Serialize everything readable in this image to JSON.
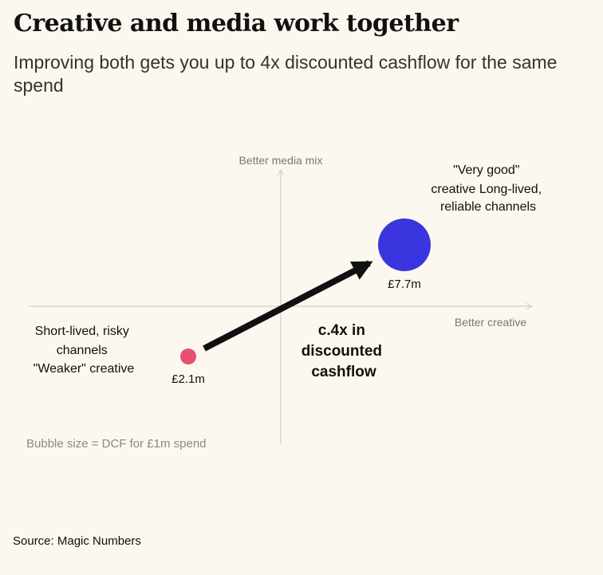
{
  "header": {
    "title": "Creative and media work together",
    "subtitle": "Improving both gets you up to 4x discounted cashflow for the same spend"
  },
  "chart_data": {
    "type": "scatter",
    "title": "Creative and media work together",
    "subtitle": "Improving both gets you up to 4x discounted cashflow for the same spend",
    "xlabel": "Better creative",
    "ylabel": "Better media mix",
    "grid": false,
    "legend": "none",
    "points": [
      {
        "id": "weak",
        "label_lines": [
          "Short-lived, risky",
          "channels",
          "\"Weaker\" creative"
        ],
        "value_label": "£2.1m",
        "dcf": 2.1,
        "color": "#e8506f",
        "quadrant": "bottom-left"
      },
      {
        "id": "strong",
        "label_lines": [
          "\"Very good\"",
          "creative Long-lived,",
          "reliable channels"
        ],
        "value_label": "£7.7m",
        "dcf": 7.7,
        "color": "#3b35e0",
        "quadrant": "top-right"
      }
    ],
    "arrow_label_lines": [
      "c.4x in",
      "discounted",
      "cashflow"
    ],
    "size_note": "Bubble size = DCF for £1m spend",
    "axis_color": "#d4d0c8"
  },
  "footer": {
    "source": "Source: Magic Numbers"
  }
}
